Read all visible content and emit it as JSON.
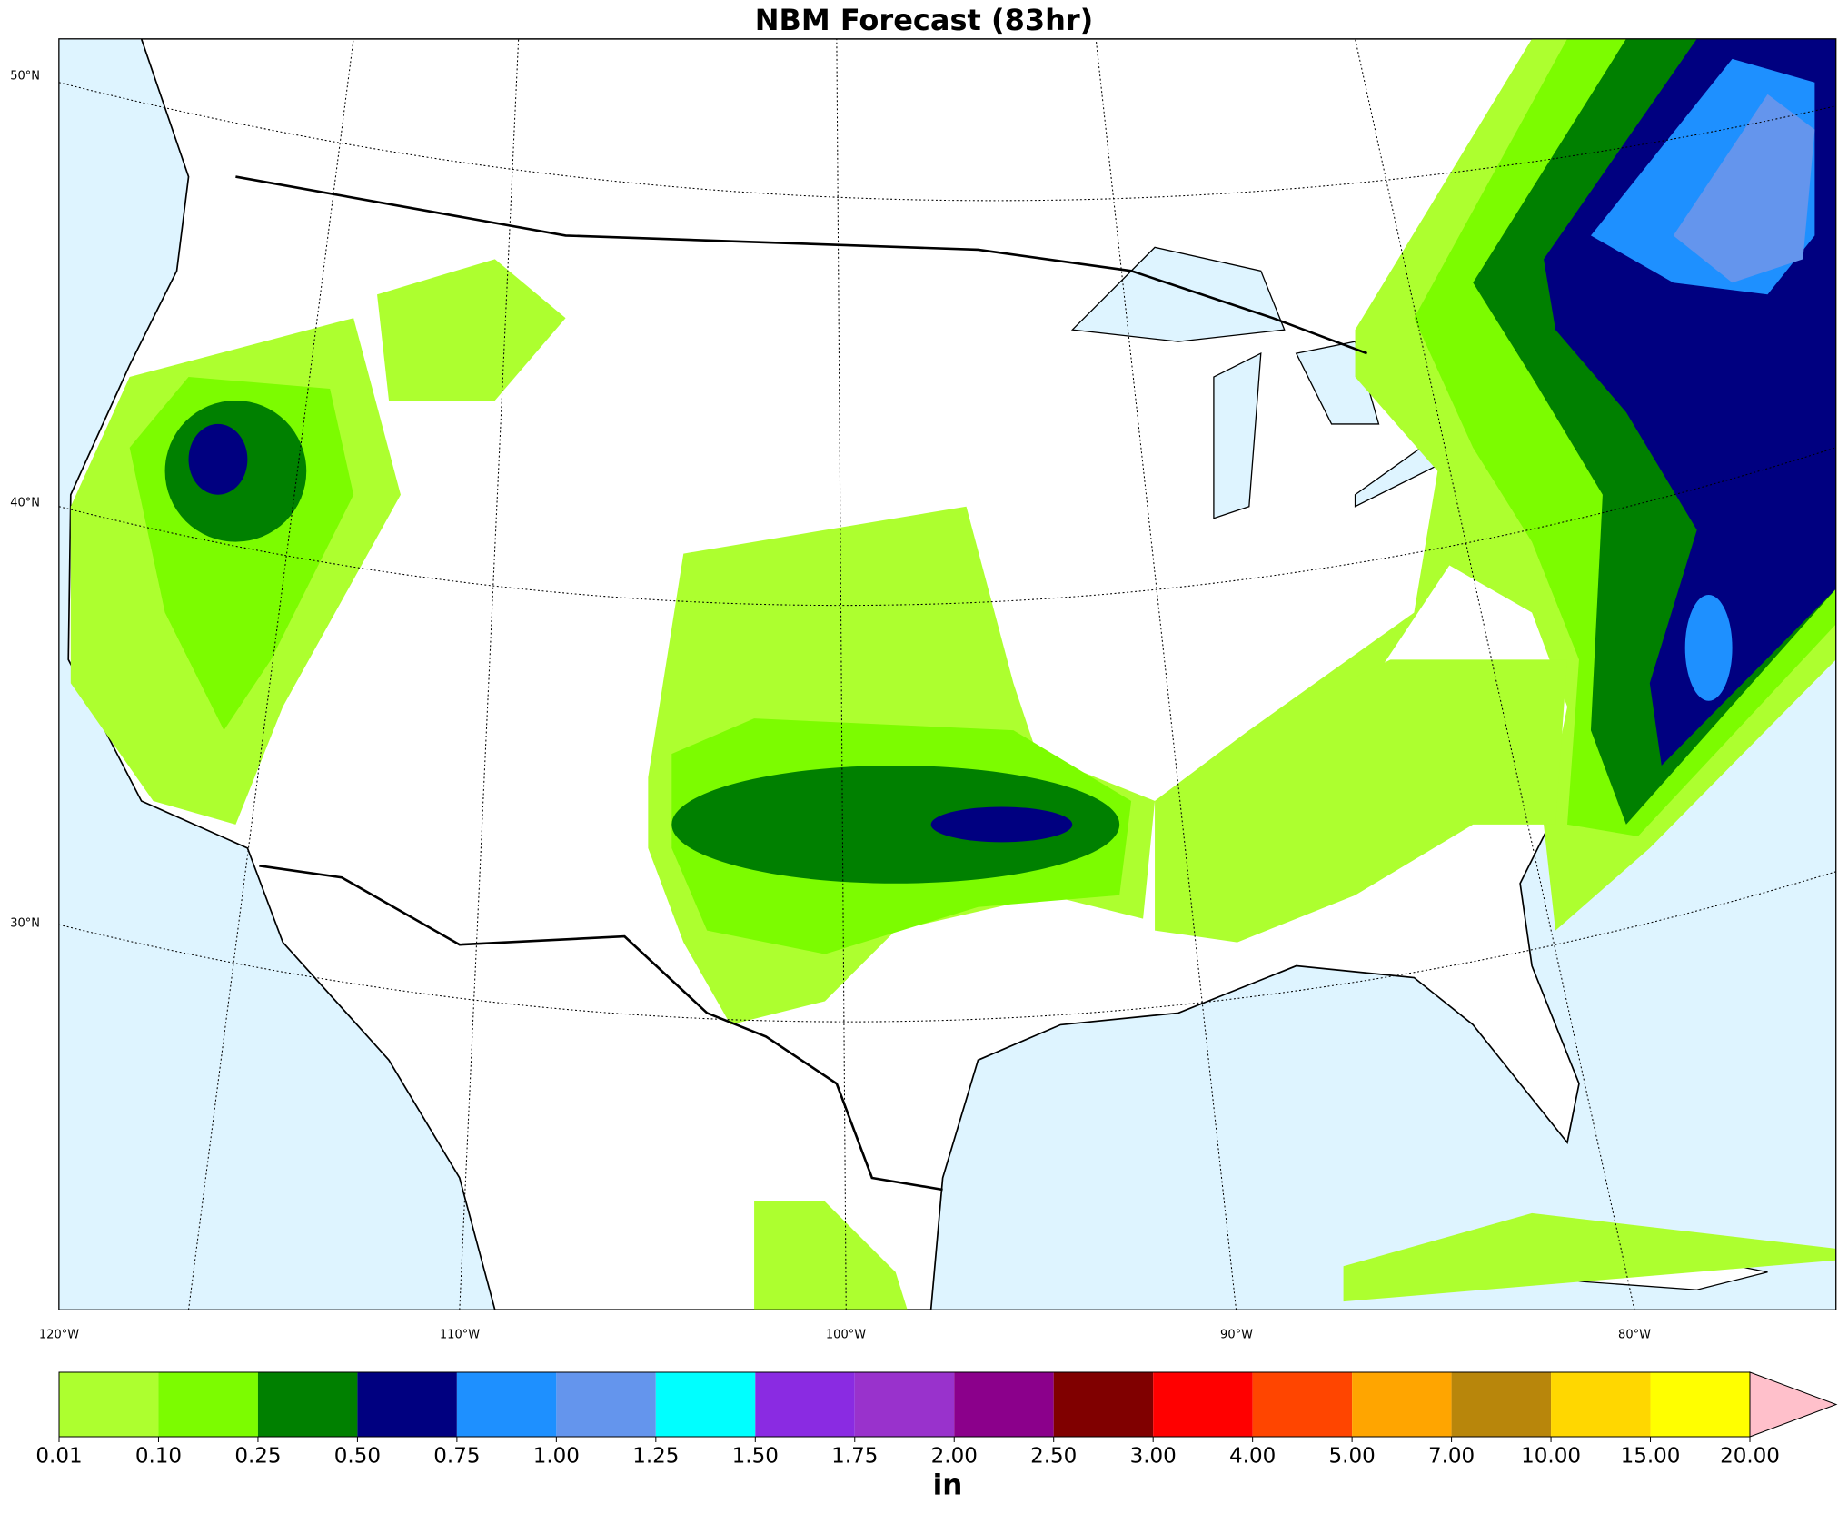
{
  "title": "NBM Forecast (83hr)",
  "map": {
    "lat_labels": [
      "50°N",
      "40°N",
      "30°N"
    ],
    "lon_labels": [
      "120°W",
      "110°W",
      "100°W",
      "90°W",
      "80°W"
    ]
  },
  "colorbar": {
    "ticks": [
      0.01,
      {
        "value": 0.1,
        "label": "0.10"
      },
      0.25,
      {
        "value": 0.5,
        "label": "0.50"
      },
      0.75,
      {
        "value": 1,
        "label": "1.00"
      },
      1.25,
      {
        "value": 1.5,
        "label": "1.50"
      },
      1.75,
      {
        "value": 2,
        "label": "2.00"
      },
      {
        "value": 2.5,
        "label": "2.50"
      },
      {
        "value": 3,
        "label": "3.00"
      },
      {
        "value": 4,
        "label": "4.00"
      },
      {
        "value": 5,
        "label": "5.00"
      },
      {
        "value": 7,
        "label": "7.00"
      },
      {
        "value": 10,
        "label": "10.00"
      },
      {
        "value": 15,
        "label": "15.00"
      },
      {
        "value": 20,
        "label": "20.00"
      }
    ],
    "colors": [
      "#adff2f",
      "#7cfc00",
      "#008000",
      "#000080",
      "#1e90ff",
      "#6495ed",
      "#00ffff",
      "#8a2be2",
      "#9932cc",
      "#8b008b",
      "#800000",
      "#ff0000",
      "#ff4500",
      "#ffa500",
      "#b8860b",
      "#ffd700",
      "#ffff00"
    ],
    "extend_color": "#ffc0cb",
    "unit": "in"
  }
}
